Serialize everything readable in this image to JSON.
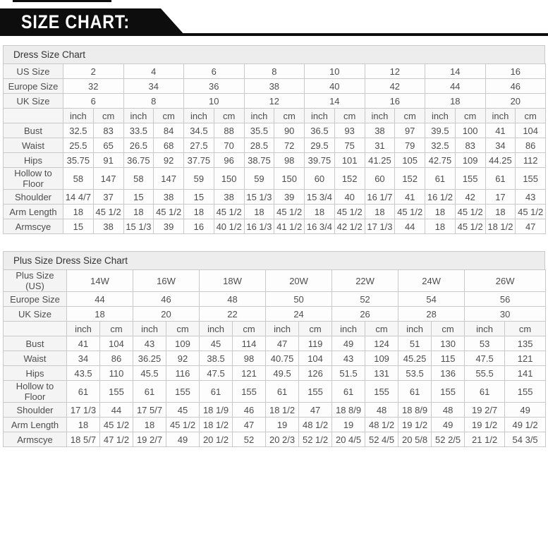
{
  "header": {
    "title": "SIZE CHART:"
  },
  "charts": [
    {
      "title": "Dress Size Chart",
      "rows": [
        {
          "label": "US Size",
          "values": [
            "2",
            "4",
            "6",
            "8",
            "10",
            "12",
            "14",
            "16"
          ]
        },
        {
          "label": "Europe Size",
          "values": [
            "32",
            "34",
            "36",
            "38",
            "40",
            "42",
            "44",
            "46"
          ]
        },
        {
          "label": "UK Size",
          "values": [
            "6",
            "8",
            "10",
            "12",
            "14",
            "16",
            "18",
            "20"
          ]
        },
        {
          "label": "",
          "values": [
            "inch",
            "cm",
            "inch",
            "cm",
            "inch",
            "cm",
            "inch",
            "cm",
            "inch",
            "cm",
            "inch",
            "cm",
            "inch",
            "cm",
            "inch",
            "cm"
          ]
        },
        {
          "label": "Bust",
          "values": [
            "32.5",
            "83",
            "33.5",
            "84",
            "34.5",
            "88",
            "35.5",
            "90",
            "36.5",
            "93",
            "38",
            "97",
            "39.5",
            "100",
            "41",
            "104"
          ]
        },
        {
          "label": "Waist",
          "values": [
            "25.5",
            "65",
            "26.5",
            "68",
            "27.5",
            "70",
            "28.5",
            "72",
            "29.5",
            "75",
            "31",
            "79",
            "32.5",
            "83",
            "34",
            "86"
          ]
        },
        {
          "label": "Hips",
          "values": [
            "35.75",
            "91",
            "36.75",
            "92",
            "37.75",
            "96",
            "38.75",
            "98",
            "39.75",
            "101",
            "41.25",
            "105",
            "42.75",
            "109",
            "44.25",
            "112"
          ]
        },
        {
          "label": "Hollow to Floor",
          "values": [
            "58",
            "147",
            "58",
            "147",
            "59",
            "150",
            "59",
            "150",
            "60",
            "152",
            "60",
            "152",
            "61",
            "155",
            "61",
            "155"
          ]
        },
        {
          "label": "Shoulder",
          "values": [
            "14 4/7",
            "37",
            "15",
            "38",
            "15",
            "38",
            "15 1/3",
            "39",
            "15 3/4",
            "40",
            "16 1/7",
            "41",
            "16 1/2",
            "42",
            "17",
            "43"
          ]
        },
        {
          "label": "Arm Length",
          "values": [
            "18",
            "45 1/2",
            "18",
            "45 1/2",
            "18",
            "45 1/2",
            "18",
            "45 1/2",
            "18",
            "45 1/2",
            "18",
            "45 1/2",
            "18",
            "45 1/2",
            "18",
            "45 1/2"
          ]
        },
        {
          "label": "Armscye",
          "values": [
            "15",
            "38",
            "15 1/3",
            "39",
            "16",
            "40 1/2",
            "16 1/3",
            "41 1/2",
            "16 3/4",
            "42 1/2",
            "17 1/3",
            "44",
            "18",
            "45 1/2",
            "18 1/2",
            "47"
          ]
        }
      ]
    },
    {
      "title": "Plus Size Dress Size Chart",
      "rows": [
        {
          "label": "Plus Size (US)",
          "values": [
            "14W",
            "16W",
            "18W",
            "20W",
            "22W",
            "24W",
            "26W"
          ]
        },
        {
          "label": "Europe Size",
          "values": [
            "44",
            "46",
            "48",
            "50",
            "52",
            "54",
            "56"
          ]
        },
        {
          "label": "UK Size",
          "values": [
            "18",
            "20",
            "22",
            "24",
            "26",
            "28",
            "30"
          ]
        },
        {
          "label": "",
          "values": [
            "inch",
            "cm",
            "inch",
            "cm",
            "inch",
            "cm",
            "inch",
            "cm",
            "inch",
            "cm",
            "inch",
            "cm",
            "inch",
            "cm"
          ]
        },
        {
          "label": "Bust",
          "values": [
            "41",
            "104",
            "43",
            "109",
            "45",
            "114",
            "47",
            "119",
            "49",
            "124",
            "51",
            "130",
            "53",
            "135"
          ]
        },
        {
          "label": "Waist",
          "values": [
            "34",
            "86",
            "36.25",
            "92",
            "38.5",
            "98",
            "40.75",
            "104",
            "43",
            "109",
            "45.25",
            "115",
            "47.5",
            "121"
          ]
        },
        {
          "label": "Hips",
          "values": [
            "43.5",
            "110",
            "45.5",
            "116",
            "47.5",
            "121",
            "49.5",
            "126",
            "51.5",
            "131",
            "53.5",
            "136",
            "55.5",
            "141"
          ]
        },
        {
          "label": "Hollow to Floor",
          "values": [
            "61",
            "155",
            "61",
            "155",
            "61",
            "155",
            "61",
            "155",
            "61",
            "155",
            "61",
            "155",
            "61",
            "155"
          ]
        },
        {
          "label": "Shoulder",
          "values": [
            "17 1/3",
            "44",
            "17 5/7",
            "45",
            "18 1/9",
            "46",
            "18 1/2",
            "47",
            "18 8/9",
            "48",
            "18 8/9",
            "48",
            "19 2/7",
            "49"
          ]
        },
        {
          "label": "Arm Length",
          "values": [
            "18",
            "45 1/2",
            "18",
            "45 1/2",
            "18 1/2",
            "47",
            "19",
            "48 1/2",
            "19",
            "48 1/2",
            "19 1/2",
            "49",
            "19 1/2",
            "49 1/2"
          ]
        },
        {
          "label": "Armscye",
          "values": [
            "18 5/7",
            "47 1/2",
            "19 2/7",
            "49",
            "20 1/2",
            "52",
            "20 2/3",
            "52 1/2",
            "20 4/5",
            "52 4/5",
            "20 5/8",
            "52 2/5",
            "21 1/2",
            "54 3/5"
          ]
        }
      ]
    }
  ],
  "colors": {
    "banner_bg": "#0d0d0d",
    "banner_text": "#ffffff",
    "table_border": "#c9c9c9",
    "title_bg": "#ededed",
    "cell_text": "#4d4d4d"
  }
}
